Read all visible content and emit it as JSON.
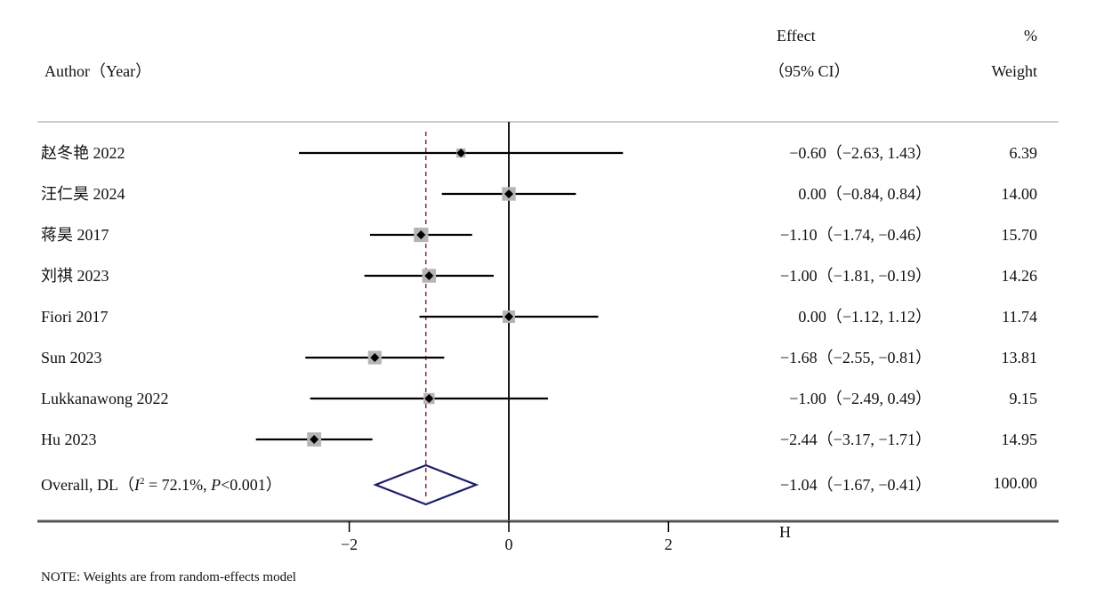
{
  "chart_data": {
    "type": "forest",
    "headers": {
      "author": "Author（Year）",
      "effect_line1": "Effect",
      "effect_line2": "（95% CI）",
      "weight_line1": "%",
      "weight_line2": "Weight"
    },
    "studies": [
      {
        "label": "赵冬艳  2022",
        "effect": -0.6,
        "lower": -2.63,
        "upper": 1.43,
        "weight": 6.39,
        "effect_text": "−0.60（−2.63, 1.43）",
        "weight_text": "6.39"
      },
      {
        "label": "汪仁昊  2024",
        "effect": 0.0,
        "lower": -0.84,
        "upper": 0.84,
        "weight": 14.0,
        "effect_text": "0.00（−0.84, 0.84）",
        "weight_text": "14.00"
      },
      {
        "label": "蒋昊  2017",
        "effect": -1.1,
        "lower": -1.74,
        "upper": -0.46,
        "weight": 15.7,
        "effect_text": "−1.10（−1.74, −0.46）",
        "weight_text": "15.70"
      },
      {
        "label": "刘祺  2023",
        "effect": -1.0,
        "lower": -1.81,
        "upper": -0.19,
        "weight": 14.26,
        "effect_text": "−1.00（−1.81, −0.19）",
        "weight_text": "14.26"
      },
      {
        "label": "Fiori  2017",
        "effect": 0.0,
        "lower": -1.12,
        "upper": 1.12,
        "weight": 11.74,
        "effect_text": "0.00（−1.12, 1.12）",
        "weight_text": "11.74"
      },
      {
        "label": "Sun  2023",
        "effect": -1.68,
        "lower": -2.55,
        "upper": -0.81,
        "weight": 13.81,
        "effect_text": "−1.68（−2.55, −0.81）",
        "weight_text": "13.81"
      },
      {
        "label": "Lukkanawong  2022",
        "effect": -1.0,
        "lower": -2.49,
        "upper": 0.49,
        "weight": 9.15,
        "effect_text": "−1.00（−2.49, 0.49）",
        "weight_text": "9.15"
      },
      {
        "label": "Hu  2023",
        "effect": -2.44,
        "lower": -3.17,
        "upper": -1.71,
        "weight": 14.95,
        "effect_text": "−2.44（−3.17, −1.71）",
        "weight_text": "14.95"
      }
    ],
    "overall": {
      "label_prefix": "Overall, DL（",
      "label_i2_symbol": "I",
      "label_i2_sup": "2",
      "label_i2_rest": " = 72.1%, ",
      "label_p_symbol": "P",
      "label_p_rest": "<0.001）",
      "effect": -1.04,
      "lower": -1.67,
      "upper": -0.41,
      "effect_text": "−1.04（−1.67, −0.41）",
      "weight_text": "100.00"
    },
    "x_ticks": [
      -2,
      0,
      2
    ],
    "x_tick_labels": [
      "−2",
      "0",
      "2"
    ],
    "xlim": [
      -3.5,
      6.8
    ],
    "axis_label": "H",
    "note": "NOTE: Weights are from random-effects model",
    "colors": {
      "line": "#000000",
      "box": "#b5b5b5",
      "diamond": "#1a1a6e",
      "dashed": "#8b2a3a",
      "axis": "#555555"
    }
  }
}
